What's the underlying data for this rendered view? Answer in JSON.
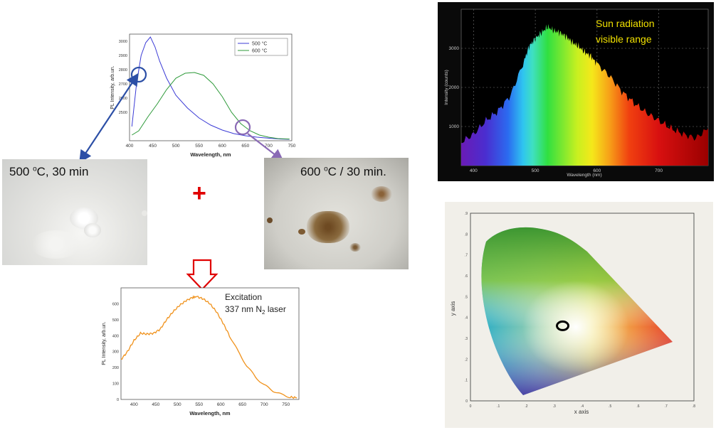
{
  "colors": {
    "blue_series": "#3b3bd6",
    "green_series": "#2e9a3a",
    "orange_series": "#f0921c",
    "blue_arrow": "#2c4fa6",
    "purple_arrow": "#8a6ab5",
    "plus_red": "#e00000",
    "sun_text": "#f0e000",
    "outline_red": "#e00000"
  },
  "photos": {
    "left_label_main": "500 ",
    "left_label_sup": "o",
    "left_label_rest": "C, 30 min",
    "right_label_main": "600 ",
    "right_label_sup": "o",
    "right_label_rest": "C / 30 min.",
    "plus": "+"
  },
  "chart_data": [
    {
      "type": "line",
      "xlabel": "Wavelength, nm",
      "ylabel": "PL Intensity, arb.un.",
      "xlim": [
        400,
        750
      ],
      "ylim": [
        2300,
        3050
      ],
      "xticks": [
        "400",
        "450",
        "500",
        "550",
        "600",
        "650",
        "700",
        "750"
      ],
      "yticks": [
        "2500",
        "2600",
        "2700",
        "2800",
        "2900",
        "3000"
      ],
      "legend": "top-right",
      "series": [
        {
          "name": "500 °C",
          "color": "#3b3bd6",
          "x": [
            405,
            415,
            425,
            435,
            445,
            455,
            465,
            480,
            500,
            525,
            550,
            575,
            600,
            625,
            650,
            675,
            700,
            725,
            745
          ],
          "y": [
            2400,
            2700,
            2900,
            2990,
            3030,
            2960,
            2860,
            2740,
            2620,
            2530,
            2460,
            2410,
            2375,
            2350,
            2335,
            2325,
            2318,
            2312,
            2310
          ]
        },
        {
          "name": "600 °C",
          "color": "#2e9a3a",
          "x": [
            405,
            420,
            440,
            460,
            480,
            500,
            520,
            540,
            560,
            580,
            600,
            620,
            640,
            660,
            680,
            700,
            720,
            745
          ],
          "y": [
            2340,
            2370,
            2470,
            2560,
            2660,
            2740,
            2775,
            2780,
            2760,
            2700,
            2610,
            2500,
            2420,
            2370,
            2340,
            2325,
            2315,
            2312
          ]
        }
      ]
    },
    {
      "type": "line",
      "xlabel": "Wavelength, nm",
      "ylabel": "PL Intensity, arb.un.",
      "xlim": [
        370,
        780
      ],
      "ylim": [
        0,
        700
      ],
      "xticks": [
        "400",
        "450",
        "500",
        "550",
        "600",
        "650",
        "700",
        "750"
      ],
      "yticks": [
        "0",
        "100",
        "200",
        "300",
        "400",
        "500",
        "600"
      ],
      "annotation": "Excitation",
      "annotation_line2": "337 nm N",
      "annotation_line2_sub": "2",
      "annotation_line2_rest": " laser",
      "series": [
        {
          "name": "",
          "color": "#f0921c",
          "x": [
            370,
            385,
            400,
            415,
            430,
            445,
            460,
            475,
            490,
            505,
            520,
            535,
            545,
            560,
            575,
            590,
            605,
            620,
            640,
            660,
            680,
            700,
            720,
            740,
            760,
            775
          ],
          "y": [
            250,
            300,
            370,
            415,
            410,
            415,
            440,
            500,
            550,
            590,
            620,
            640,
            645,
            630,
            600,
            550,
            480,
            400,
            300,
            210,
            140,
            90,
            55,
            30,
            15,
            10
          ]
        }
      ]
    },
    {
      "type": "area",
      "title": "Sun radiation visible range",
      "xlabel": "Wavelength (nm)",
      "ylabel": "Intensity (counts)",
      "xlim": [
        380,
        780
      ],
      "ylim": [
        0,
        4000
      ],
      "xticks": [
        "400",
        "500",
        "600",
        "700"
      ],
      "yticks": [
        "1000",
        "2000",
        "3000"
      ],
      "grid": true,
      "x": [
        380,
        400,
        420,
        440,
        460,
        480,
        490,
        500,
        510,
        520,
        530,
        540,
        550,
        560,
        570,
        580,
        590,
        600,
        620,
        640,
        660,
        680,
        700,
        720,
        740,
        760,
        780
      ],
      "y": [
        600,
        800,
        1150,
        1400,
        1800,
        2600,
        3050,
        3250,
        3400,
        3550,
        3450,
        3400,
        3300,
        3150,
        3050,
        2900,
        2800,
        2600,
        2300,
        1900,
        1600,
        1350,
        1150,
        950,
        800,
        700,
        950
      ]
    },
    {
      "type": "scatter",
      "title": "",
      "xlabel": "x axis",
      "ylabel": "y axis",
      "xlim": [
        0,
        0.8
      ],
      "ylim": [
        0,
        0.9
      ],
      "xticks": [
        "0",
        ".1",
        ".2",
        ".3",
        ".4",
        ".5",
        ".6",
        ".7",
        ".8"
      ],
      "yticks": [
        "0",
        ".1",
        ".2",
        ".3",
        ".4",
        ".5",
        ".6",
        ".7",
        ".8",
        ".9"
      ],
      "point": {
        "x": 0.33,
        "y": 0.36
      }
    }
  ]
}
